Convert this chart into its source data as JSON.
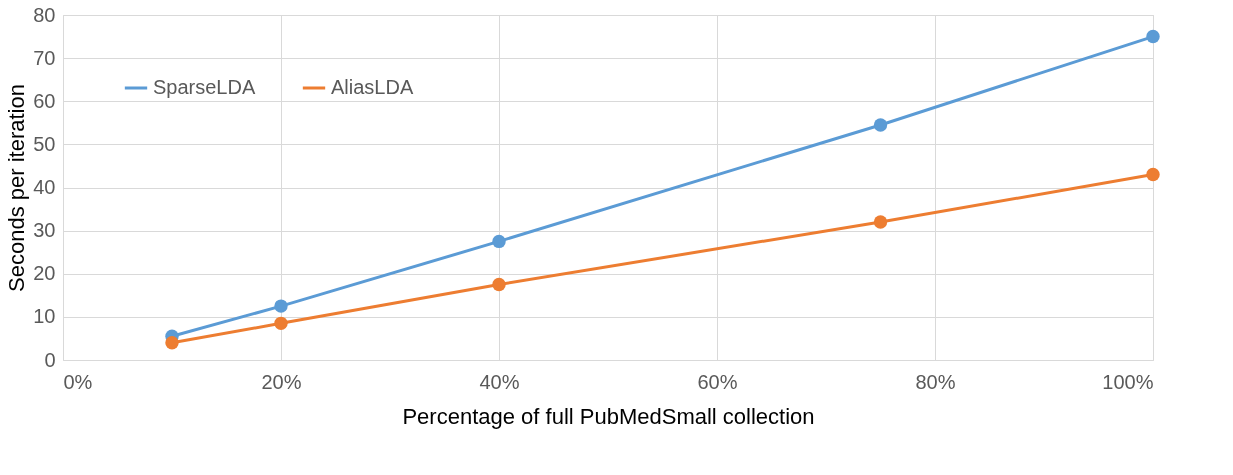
{
  "chart_data": {
    "type": "line",
    "xlabel": "Percentage of full PubMedSmall collection",
    "ylabel": "Seconds per iteration",
    "x": [
      10,
      20,
      40,
      75,
      100
    ],
    "series": [
      {
        "name": "SparseLDA",
        "color": "#5b9bd5",
        "values": [
          5.5,
          12.5,
          27.5,
          54.5,
          75
        ]
      },
      {
        "name": "AliasLDA",
        "color": "#ed7d31",
        "values": [
          4,
          8.5,
          17.5,
          32,
          43
        ]
      }
    ],
    "xlim": [
      0,
      100
    ],
    "xticks": [
      {
        "value": 0,
        "label": "0%"
      },
      {
        "value": 20,
        "label": "20%"
      },
      {
        "value": 40,
        "label": "40%"
      },
      {
        "value": 60,
        "label": "60%"
      },
      {
        "value": 80,
        "label": "80%"
      },
      {
        "value": 100,
        "label": "100%"
      }
    ],
    "ylim": [
      0,
      80
    ],
    "yticks": [
      0,
      10,
      20,
      30,
      40,
      50,
      60,
      70,
      80
    ],
    "grid": true,
    "legend": "top left",
    "marker": "circle",
    "line_style": "solid"
  }
}
